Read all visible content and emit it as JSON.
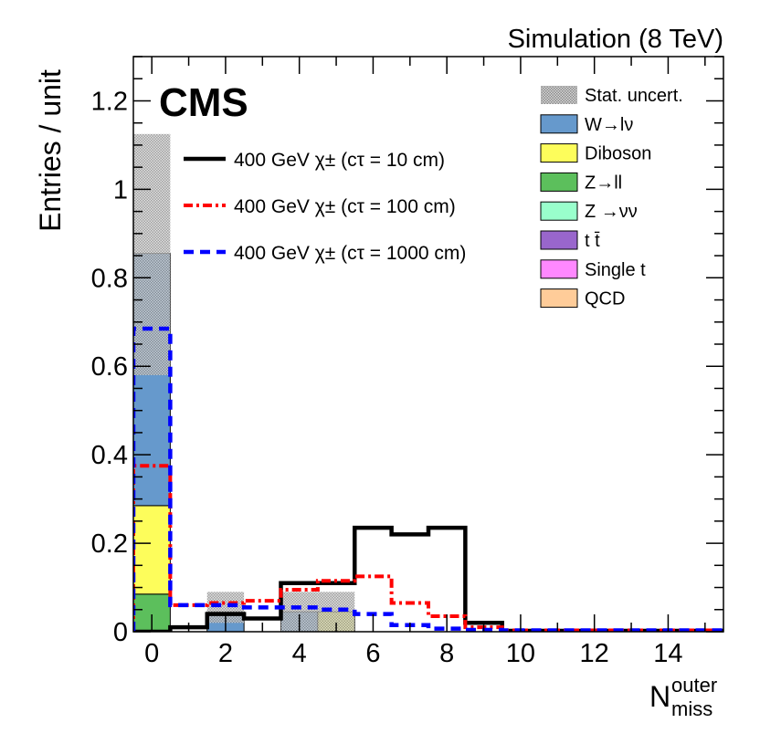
{
  "chart_data": {
    "type": "bar",
    "stacked": true,
    "experiment": "CMS",
    "header": "Simulation (8 TeV)",
    "ylabel": "Entries / unit",
    "xlabel": {
      "main": "N",
      "sup": "outer",
      "sub": "miss"
    },
    "xlim": [
      -0.5,
      15.5
    ],
    "ylim": [
      0,
      1.3
    ],
    "xticks": [
      0,
      2,
      4,
      6,
      8,
      10,
      12,
      14
    ],
    "xtick_labels": [
      "0",
      "2",
      "4",
      "6",
      "8",
      "10",
      "12",
      "14"
    ],
    "yticks": [
      0,
      0.2,
      0.4,
      0.6,
      0.8,
      1.0,
      1.2
    ],
    "ytick_labels": [
      "0",
      "0.2",
      "0.4",
      "0.6",
      "0.8",
      "1",
      "1.2"
    ],
    "background": {
      "bins": [
        0,
        1,
        2,
        3,
        4,
        5,
        6,
        7,
        8,
        9,
        10,
        11,
        12,
        13,
        14,
        15
      ],
      "series": [
        {
          "name": "Z→ll",
          "color": "#5cbf5c",
          "values": [
            0.085,
            0,
            0,
            0,
            0,
            0,
            0,
            0,
            0,
            0,
            0,
            0,
            0,
            0,
            0,
            0
          ]
        },
        {
          "name": "Diboson",
          "color": "#fdfd5b",
          "values": [
            0.2,
            0,
            0,
            0,
            0,
            0.045,
            0,
            0,
            0,
            0,
            0,
            0,
            0,
            0,
            0,
            0
          ]
        },
        {
          "name": "W→lν",
          "color": "#6699cc",
          "values": [
            0.57,
            0,
            0.045,
            0,
            0.045,
            0,
            0,
            0,
            0,
            0,
            0,
            0,
            0,
            0,
            0,
            0
          ]
        }
      ],
      "stat_uncert": {
        "label": "Stat. uncert.",
        "down": [
          0.58,
          0,
          0.02,
          0,
          0,
          0,
          0,
          0,
          0,
          0,
          0,
          0,
          0,
          0,
          0,
          0
        ],
        "up": [
          1.125,
          0,
          0.09,
          0,
          0.09,
          0.09,
          0,
          0,
          0,
          0,
          0,
          0,
          0,
          0,
          0,
          0
        ]
      }
    },
    "signals": [
      {
        "name": "400 GeV χ± (cτ = 10 cm)",
        "color": "#000000",
        "style": "solid",
        "values": [
          0.0,
          0.01,
          0.04,
          0.03,
          0.11,
          0.11,
          0.235,
          0.22,
          0.235,
          0.02,
          0.002,
          0.002,
          0.002,
          0.002,
          0.002,
          0.002
        ]
      },
      {
        "name": "400 GeV χ± (cτ = 100 cm)",
        "color": "#ff0000",
        "style": "dashdot",
        "values": [
          0.375,
          0.06,
          0.065,
          0.07,
          0.095,
          0.115,
          0.125,
          0.065,
          0.035,
          0.01,
          0.003,
          0.003,
          0.003,
          0.003,
          0.003,
          0.003
        ]
      },
      {
        "name": "400 GeV χ± (cτ = 1000 cm)",
        "color": "#0000ff",
        "style": "dashed",
        "values": [
          0.685,
          0.06,
          0.06,
          0.055,
          0.055,
          0.05,
          0.04,
          0.015,
          0.007,
          0.004,
          0.003,
          0.003,
          0.003,
          0.003,
          0.003,
          0.003
        ]
      }
    ],
    "legend": [
      {
        "label": "Stat. uncert.",
        "color": "#bcbcbc",
        "hatched": true
      },
      {
        "label": "W→lν",
        "color": "#6699cc"
      },
      {
        "label": "Diboson",
        "color": "#fdfd5b"
      },
      {
        "label": "Z→ll",
        "color": "#5cbf5c"
      },
      {
        "label": "Z →νν",
        "color": "#99ffcc"
      },
      {
        "label": "t t̄",
        "color": "#9966cc"
      },
      {
        "label": "Single t",
        "color": "#ff88ff"
      },
      {
        "label": "QCD",
        "color": "#ffcc99"
      }
    ]
  }
}
